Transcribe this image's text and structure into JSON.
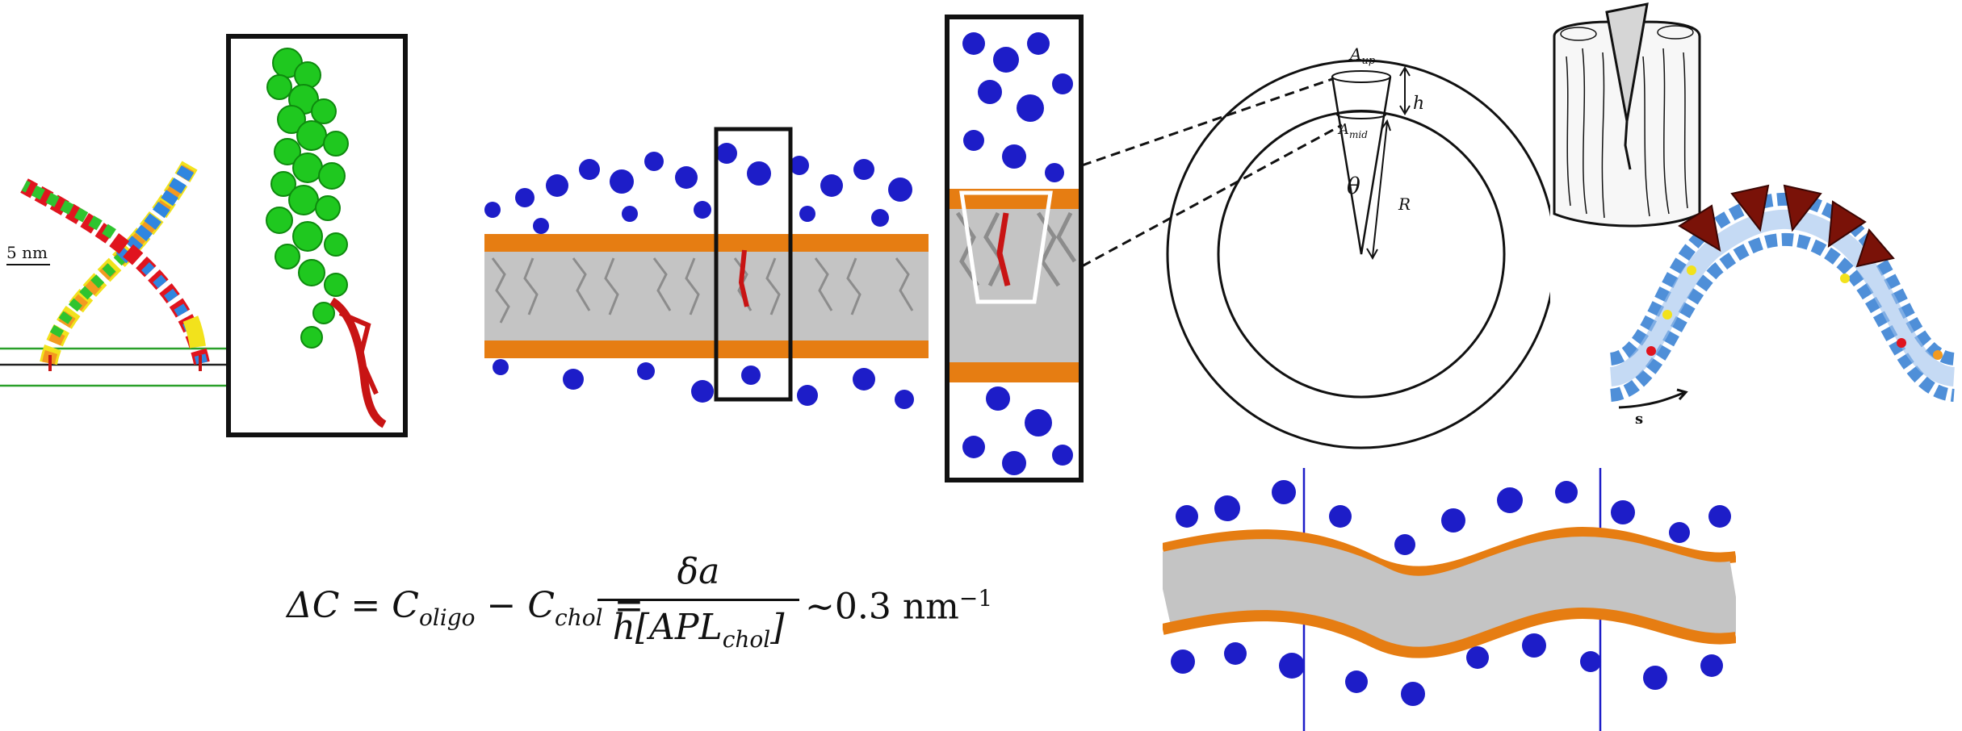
{
  "dna_panel": {
    "scale_label": "5 nm"
  },
  "wedge_panel": {
    "label_a_up_base": "A",
    "label_a_up_sub": "up",
    "label_a_mid_base": "A",
    "label_a_mid_sub": "mid",
    "label_h": "h",
    "label_theta": "θ",
    "label_r": "R"
  },
  "curvature_panel": {
    "label_s": "s"
  },
  "equation": {
    "lhs": "ΔC = C",
    "sub_oligo": "oligo",
    "minus": " − C",
    "sub_chol": "chol",
    "equals": " =",
    "numerator": "δa",
    "denominator_prefix": "h[APL",
    "denominator_sub": "chol",
    "denominator_suffix": "]",
    "tail": "~0.3 nm",
    "tail_exp": "−1"
  },
  "colors": {
    "dna_red": "#e0141e",
    "dna_green": "#2fc42f",
    "dna_orange": "#f39a20",
    "dna_blue": "#2f86e0",
    "dna_yellow": "#f2e21c",
    "lipid_headgroup": "#e67d12",
    "lipid_tail": "#b8b8b8",
    "polymer_blue": "#1d1dc8",
    "cholesterol_green": "#1fc81f",
    "anchor_red": "#c81414",
    "wedge_brown": "#7a1208"
  }
}
